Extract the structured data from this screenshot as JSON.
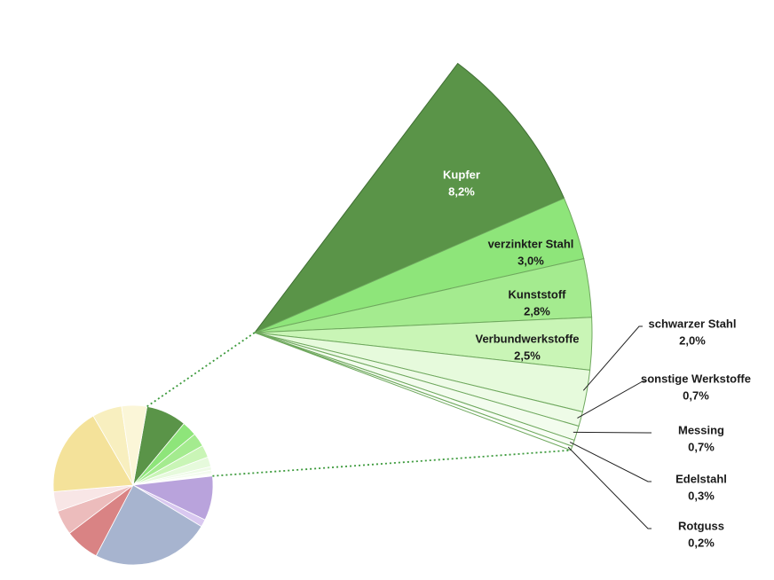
{
  "chart_data": {
    "type": "pie",
    "categories": [
      "Kupfer",
      "verzinkter Stahl",
      "Kunststoff",
      "Verbundwerkstoffe",
      "schwarzer Stahl",
      "sonstige Werkstoffe",
      "Messing",
      "Edelstahl",
      "Rotguss"
    ],
    "values": [
      8.2,
      3.0,
      2.8,
      2.5,
      2.0,
      0.7,
      0.7,
      0.3,
      0.2
    ],
    "value_labels": [
      "8,2%",
      "3,0%",
      "2,8%",
      "2,5%",
      "2,0%",
      "0,7%",
      "0,7%",
      "0,3%",
      "0,2%"
    ],
    "colors": [
      "#5a9448",
      "#8ee57a",
      "#a4eb8f",
      "#c9f5b6",
      "#e6fadc",
      "#eefbe7",
      "#f3fcee",
      "#f8fdf5",
      "#fcfffb"
    ],
    "other_slices": {
      "categories": [
        null,
        null,
        null,
        null,
        null,
        null,
        null,
        null,
        null
      ],
      "values": [
        9,
        1.5,
        24,
        7,
        5,
        4,
        18,
        6,
        5.1
      ],
      "colors": [
        "#b9a3dc",
        "#d9c8f0",
        "#a7b4cf",
        "#d98384",
        "#ecbcbc",
        "#f8e6e6",
        "#f4e29a",
        "#f8efbf",
        "#fbf6d8"
      ]
    }
  }
}
